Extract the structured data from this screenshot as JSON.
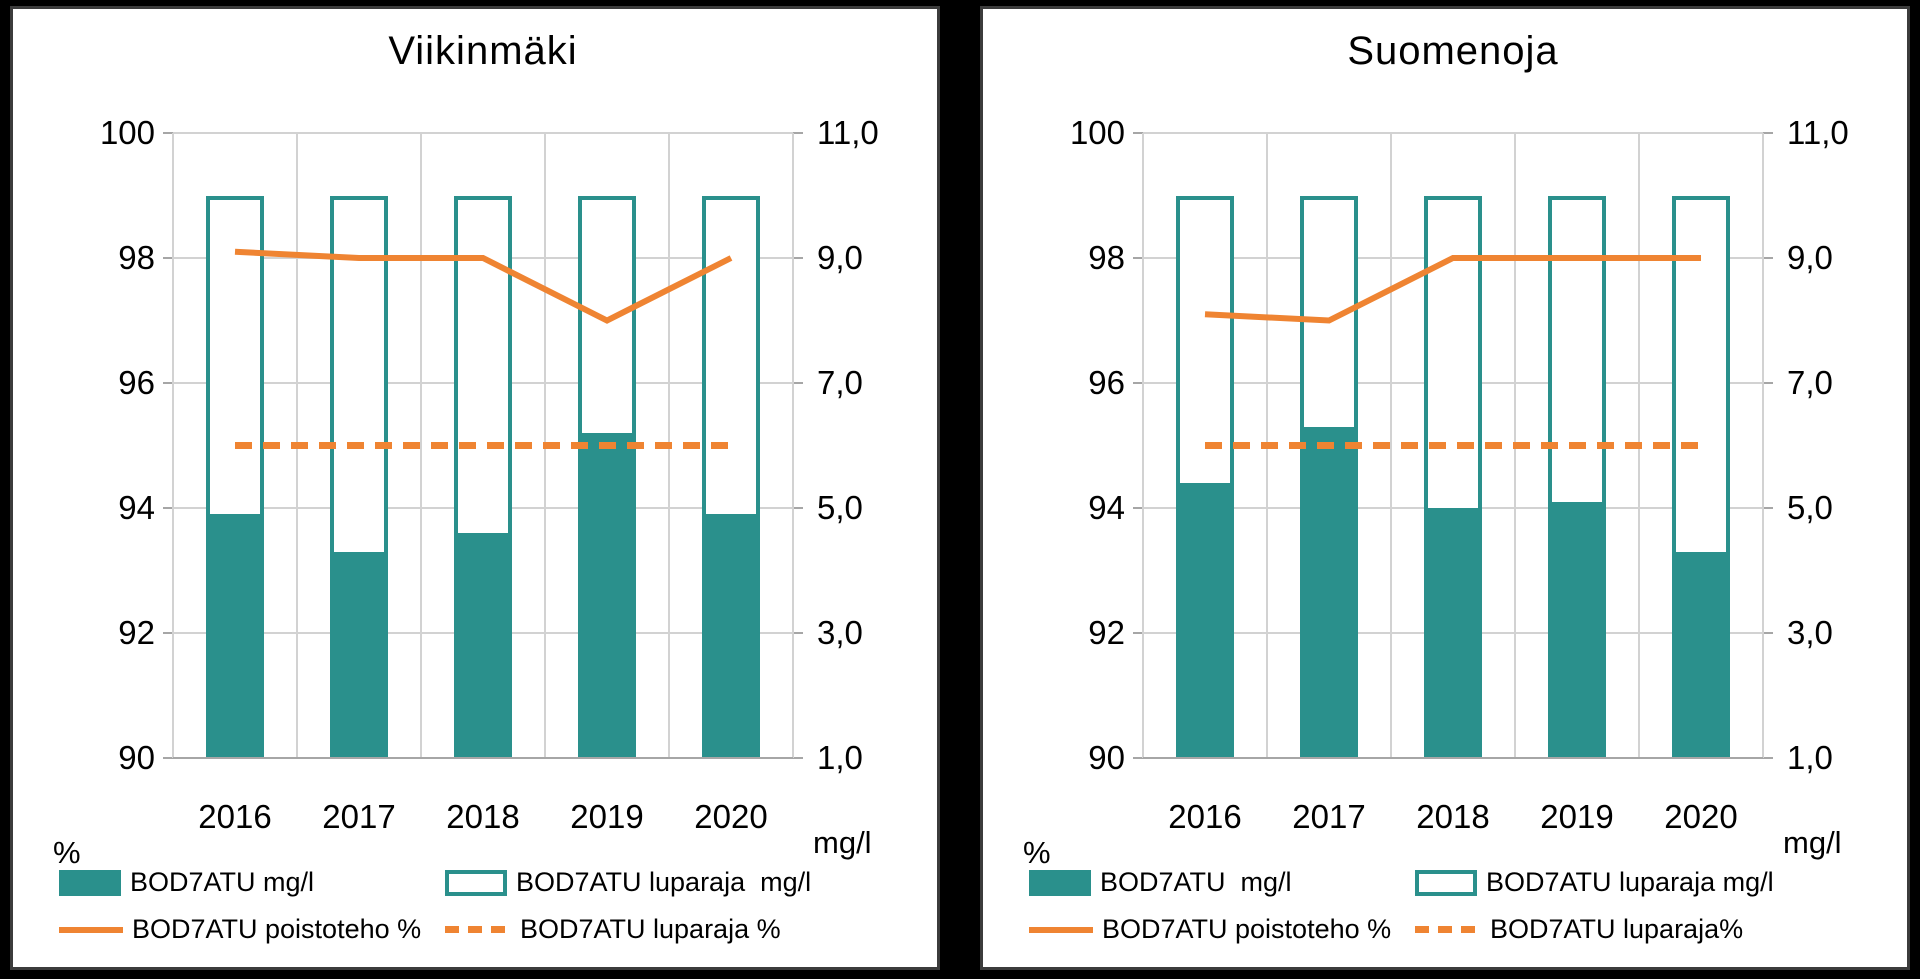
{
  "colors": {
    "teal": "#2A908C",
    "orange": "#EF8432",
    "gridline": "#D2D2D2",
    "axis_line": "#A6A6A6",
    "text": "#000000",
    "panel_background": "#FFFFFF",
    "frame": "#000000"
  },
  "chart_data": [
    {
      "type": "bar",
      "title": "Viikinmäki",
      "categories": [
        "2016",
        "2017",
        "2018",
        "2019",
        "2020"
      ],
      "left_axis": {
        "label": "%",
        "min": 90,
        "max": 100,
        "ticks": [
          "100",
          "98",
          "96",
          "94",
          "92",
          "90"
        ]
      },
      "right_axis": {
        "label": "mg/l",
        "min": 1.0,
        "max": 11.0,
        "ticks": [
          "11,0",
          "9,0",
          "7,0",
          "5,0",
          "3,0",
          "1,0"
        ]
      },
      "grid": true,
      "legend_position": "bottom",
      "series": [
        {
          "name": "BOD7ATU mg/l",
          "type": "bar",
          "style": "filled",
          "axis": "right",
          "values": [
            4.9,
            4.3,
            4.6,
            6.2,
            4.9
          ]
        },
        {
          "name": "BOD7ATU luparaja  mg/l",
          "type": "bar",
          "style": "outline",
          "axis": "right",
          "values": [
            10.0,
            10.0,
            10.0,
            10.0,
            10.0
          ]
        },
        {
          "name": "BOD7ATU poistoteho %",
          "type": "line",
          "style": "solid",
          "axis": "left",
          "values": [
            98.1,
            98.0,
            98.0,
            97.0,
            98.0
          ]
        },
        {
          "name": "BOD7ATU luparaja %",
          "type": "line",
          "style": "dashed",
          "axis": "left",
          "values": [
            95.0,
            95.0,
            95.0,
            95.0,
            95.0
          ]
        }
      ]
    },
    {
      "type": "bar",
      "title": "Suomenoja",
      "categories": [
        "2016",
        "2017",
        "2018",
        "2019",
        "2020"
      ],
      "left_axis": {
        "label": "%",
        "min": 90,
        "max": 100,
        "ticks": [
          "100",
          "98",
          "96",
          "94",
          "92",
          "90"
        ]
      },
      "right_axis": {
        "label": "mg/l",
        "min": 1.0,
        "max": 11.0,
        "ticks": [
          "11,0",
          "9,0",
          "7,0",
          "5,0",
          "3,0",
          "1,0"
        ]
      },
      "grid": true,
      "legend_position": "bottom",
      "series": [
        {
          "name": "BOD7ATU  mg/l",
          "type": "bar",
          "style": "filled",
          "axis": "right",
          "values": [
            5.4,
            6.3,
            5.0,
            5.1,
            4.3
          ]
        },
        {
          "name": "BOD7ATU luparaja mg/l",
          "type": "bar",
          "style": "outline",
          "axis": "right",
          "values": [
            10.0,
            10.0,
            10.0,
            10.0,
            10.0
          ]
        },
        {
          "name": "BOD7ATU poistoteho %",
          "type": "line",
          "style": "solid",
          "axis": "left",
          "values": [
            97.1,
            97.0,
            98.0,
            98.0,
            98.0
          ]
        },
        {
          "name": "BOD7ATU luparaja%",
          "type": "line",
          "style": "dashed",
          "axis": "left",
          "values": [
            95.0,
            95.0,
            95.0,
            95.0,
            95.0
          ]
        }
      ]
    }
  ]
}
